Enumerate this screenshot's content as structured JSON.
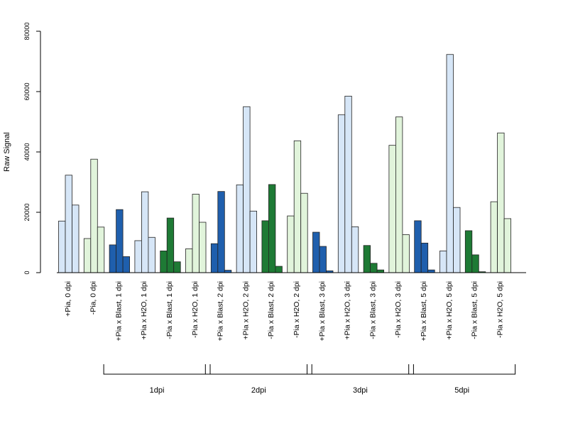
{
  "chart_data": {
    "type": "bar",
    "ylabel": "Raw Signal",
    "ylim": [
      0,
      80000
    ],
    "yticks": [
      0,
      20000,
      40000,
      60000,
      80000
    ],
    "grid": false,
    "categories": [
      "+Pia, 0 dpi",
      "-Pia, 0 dpi",
      "+Pia x Blast, 1 dpi",
      "+Pia x H2O, 1 dpi",
      "-Pia x Blast, 1 dpi",
      "-Pia x H2O, 1 dpi",
      "+Pia x Blast, 2 dpi",
      "+Pia x H2O, 2 dpi",
      "-Pia x Blast, 2 dpi",
      "-Pia x H2O, 2 dpi",
      "+Pia x Blast, 3 dpi",
      "+Pia x H2O, 3 dpi",
      "-Pia x Blast, 3 dpi",
      "-Pia x H2O, 3 dpi",
      "+Pia x Blast, 5 dpi",
      "+Pia x H2O, 5 dpi",
      "-Pia x Blast, 5 dpi",
      "-Pia x H2O, 5 dpi"
    ],
    "group_colors": [
      "#d6e6f7",
      "#e1f4db",
      "#1f5fad",
      "#d6e6f7",
      "#1e7a35",
      "#e1f4db",
      "#1f5fad",
      "#d6e6f7",
      "#1e7a35",
      "#e1f4db",
      "#1f5fad",
      "#d6e6f7",
      "#1e7a35",
      "#e1f4db",
      "#1f5fad",
      "#d6e6f7",
      "#1e7a35",
      "#e1f4db"
    ],
    "values": [
      [
        17100,
        32300,
        22400
      ],
      [
        11300,
        37600,
        15100
      ],
      [
        9200,
        20900,
        5300
      ],
      [
        10600,
        26800,
        11700
      ],
      [
        7200,
        18100,
        3600
      ],
      [
        7900,
        26000,
        16700
      ],
      [
        9600,
        26900,
        800
      ],
      [
        29100,
        55000,
        20400
      ],
      [
        17200,
        29200,
        2100
      ],
      [
        18800,
        43700,
        26300
      ],
      [
        13400,
        8700,
        600
      ],
      [
        52300,
        58500,
        15200
      ],
      [
        9000,
        3100,
        900
      ],
      [
        42200,
        51600,
        12600
      ],
      [
        17200,
        9800,
        900
      ],
      [
        7200,
        72300,
        21600
      ],
      [
        13900,
        5900,
        300
      ],
      [
        23500,
        46300,
        17900
      ]
    ],
    "brackets": [
      {
        "label": "1dpi",
        "from": 2,
        "to": 5
      },
      {
        "label": "2dpi",
        "from": 6,
        "to": 9
      },
      {
        "label": "3dpi",
        "from": 10,
        "to": 13
      },
      {
        "label": "5dpi",
        "from": 14,
        "to": 17
      }
    ]
  }
}
